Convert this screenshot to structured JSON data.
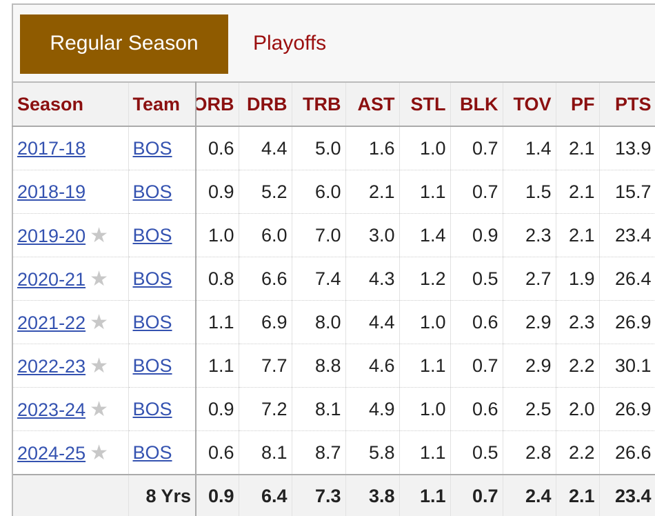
{
  "tabs": [
    "Regular Season",
    "Playoffs"
  ],
  "table": {
    "header": [
      "Season",
      "Team",
      "ORB",
      "DRB",
      "TRB",
      "AST",
      "STL",
      "BLK",
      "TOV",
      "PF",
      "PTS"
    ],
    "rows": [
      [
        "2017-18",
        "BOS",
        "0.6",
        "4.4",
        "5.0",
        "1.6",
        "1.0",
        "0.7",
        "1.4",
        "2.1",
        "13.9"
      ],
      [
        "2018-19",
        "BOS",
        "0.9",
        "5.2",
        "6.0",
        "2.1",
        "1.1",
        "0.7",
        "1.5",
        "2.1",
        "15.7"
      ],
      [
        "2019-20",
        "BOS",
        "1.0",
        "6.0",
        "7.0",
        "3.0",
        "1.4",
        "0.9",
        "2.3",
        "2.1",
        "23.4"
      ],
      [
        "2020-21",
        "BOS",
        "0.8",
        "6.6",
        "7.4",
        "4.3",
        "1.2",
        "0.5",
        "2.7",
        "1.9",
        "26.4"
      ],
      [
        "2021-22",
        "BOS",
        "1.1",
        "6.9",
        "8.0",
        "4.4",
        "1.0",
        "0.6",
        "2.9",
        "2.3",
        "26.9"
      ],
      [
        "2022-23",
        "BOS",
        "1.1",
        "7.7",
        "8.8",
        "4.6",
        "1.1",
        "0.7",
        "2.9",
        "2.2",
        "30.1"
      ],
      [
        "2023-24",
        "BOS",
        "0.9",
        "7.2",
        "8.1",
        "4.9",
        "1.0",
        "0.6",
        "2.5",
        "2.0",
        "26.9"
      ],
      [
        "2024-25",
        "BOS",
        "0.6",
        "8.1",
        "8.7",
        "5.8",
        "1.1",
        "0.5",
        "2.8",
        "2.2",
        "26.6"
      ]
    ],
    "footer": [
      "8 Yrs",
      "0.9",
      "6.4",
      "7.3",
      "3.8",
      "1.1",
      "0.7",
      "2.4",
      "2.1",
      "23.4"
    ]
  }
}
